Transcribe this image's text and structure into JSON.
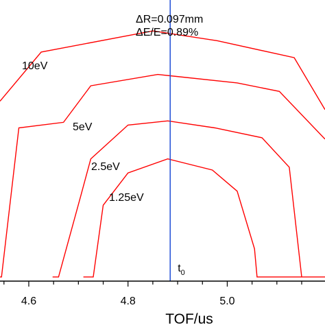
{
  "chart_data": {
    "type": "line",
    "title": "",
    "xlabel": "TOF/us",
    "ylabel": "",
    "xlim": [
      4.542,
      5.197
    ],
    "ylim": [
      0,
      1
    ],
    "x_ticks": [
      {
        "value": 4.6,
        "label": "4.6"
      },
      {
        "value": 4.8,
        "label": "4.8"
      },
      {
        "value": 5.0,
        "label": "5.0"
      }
    ],
    "grid": false,
    "series": [
      {
        "name": "10eV",
        "color": "#ff0000",
        "points": [
          [
            4.542,
            0.64
          ],
          [
            4.625,
            0.815
          ],
          [
            4.85,
            0.89
          ],
          [
            4.98,
            0.855
          ],
          [
            5.135,
            0.795
          ],
          [
            5.197,
            0.61
          ]
        ]
      },
      {
        "name": "5eV",
        "color": "#ff0000",
        "points": [
          [
            4.542,
            0.015
          ],
          [
            4.545,
            0.015
          ],
          [
            4.58,
            0.545
          ],
          [
            4.67,
            0.565
          ],
          [
            4.725,
            0.695
          ],
          [
            4.86,
            0.735
          ],
          [
            5.02,
            0.705
          ],
          [
            5.105,
            0.675
          ],
          [
            5.197,
            0.505
          ]
        ]
      },
      {
        "name": "2.5eV",
        "color": "#ff0000",
        "points": [
          [
            4.648,
            0.015
          ],
          [
            4.66,
            0.015
          ],
          [
            4.705,
            0.305
          ],
          [
            4.725,
            0.435
          ],
          [
            4.8,
            0.555
          ],
          [
            4.88,
            0.57
          ],
          [
            4.975,
            0.545
          ],
          [
            5.07,
            0.51
          ],
          [
            5.125,
            0.405
          ],
          [
            5.15,
            0.015
          ]
        ]
      },
      {
        "name": "1.25eV",
        "color": "#ff0000",
        "points": [
          [
            4.71,
            0.015
          ],
          [
            4.73,
            0.015
          ],
          [
            4.75,
            0.27
          ],
          [
            4.8,
            0.385
          ],
          [
            4.88,
            0.435
          ],
          [
            4.97,
            0.395
          ],
          [
            5.02,
            0.32
          ],
          [
            5.055,
            0.115
          ],
          [
            5.06,
            0.015
          ],
          [
            5.197,
            0.015
          ]
        ]
      }
    ],
    "reference_line": {
      "label": "t",
      "subscript": "0",
      "x": 4.885,
      "color": "#1f4fd6"
    },
    "annotations": [
      "ΔR=0.097mm",
      "ΔE/E=0.89%"
    ]
  }
}
